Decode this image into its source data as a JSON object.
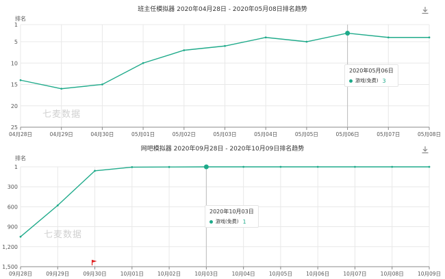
{
  "colors": {
    "line": "#1eaa8a",
    "grid": "#e8e8e8",
    "axis": "#888888",
    "text": "#555555",
    "flag": "#e02020"
  },
  "icons": {
    "download": "download-icon",
    "flag": "flag-icon"
  },
  "watermark": "七麦数据",
  "charts": [
    {
      "title": "班主任模拟器 2020年04月28日 - 2020年05月08日排名趋势",
      "ylabel": "排名",
      "tooltip": {
        "date": "2020年05月06日",
        "series": "游戏(免费)",
        "value": "3"
      },
      "chart_data": {
        "type": "line",
        "y_inverted": true,
        "ylim": [
          1,
          25
        ],
        "yticks": [
          1,
          5,
          10,
          15,
          20,
          25
        ],
        "ytick_labels": [
          "1",
          "5",
          "10",
          "15",
          "20",
          "25"
        ],
        "categories": [
          "04月28日",
          "04月29日",
          "04月30日",
          "05月01日",
          "05月02日",
          "05月03日",
          "05月04日",
          "05月05日",
          "05月06日",
          "05月07日",
          "05月08日"
        ],
        "series": [
          {
            "name": "游戏(免费)",
            "values": [
              14,
              16,
              15,
              10,
              7,
              6,
              4,
              5,
              3,
              4,
              4
            ]
          }
        ],
        "highlight_index": 8,
        "grid": true,
        "legend": "none"
      }
    },
    {
      "title": "网吧模拟器 2020年09月28日 - 2020年10月09日排名趋势",
      "ylabel": "排名",
      "tooltip": {
        "date": "2020年10月03日",
        "series": "游戏(免费)",
        "value": "1"
      },
      "chart_data": {
        "type": "line",
        "y_inverted": true,
        "ylim": [
          1,
          1500
        ],
        "yticks": [
          1,
          300,
          600,
          900,
          1200,
          1500
        ],
        "ytick_labels": [
          "1",
          "300",
          "600",
          "900",
          "1,200",
          "1,500"
        ],
        "categories": [
          "09月28日",
          "09月29日",
          "09月30日",
          "10月01日",
          "10月02日",
          "10月03日",
          "10月04日",
          "10月05日",
          "10月06日",
          "10月07日",
          "10月08日",
          "10月09日"
        ],
        "series": [
          {
            "name": "游戏(免费)",
            "values": [
              1050,
              580,
              60,
              5,
              3,
              1,
              1,
              1,
              1,
              1,
              1,
              1
            ]
          }
        ],
        "highlight_index": 5,
        "flag_index": 2,
        "grid": true,
        "legend": "none"
      }
    }
  ]
}
